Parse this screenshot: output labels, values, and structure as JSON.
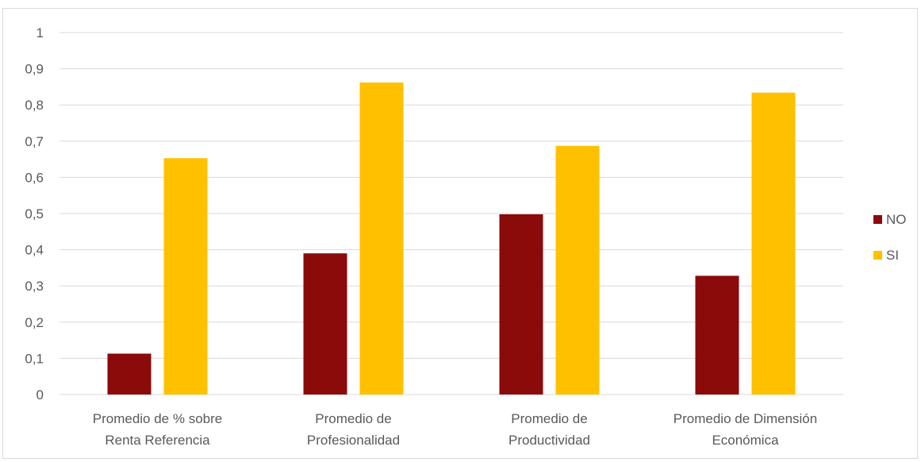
{
  "chart_data": {
    "type": "bar",
    "categories": [
      [
        "Promedio de % sobre",
        "Renta Referencia"
      ],
      [
        "Promedio de",
        "Profesionalidad"
      ],
      [
        "Promedio de",
        "Productividad"
      ],
      [
        "Promedio de Dimensión",
        "Económica"
      ]
    ],
    "series": [
      {
        "name": "NO",
        "color": "#8b0a0a",
        "values": [
          0.113,
          0.39,
          0.498,
          0.328
        ]
      },
      {
        "name": "SI",
        "color": "#ffc000",
        "values": [
          0.653,
          0.862,
          0.687,
          0.834
        ]
      }
    ],
    "ylim": [
      0,
      1
    ],
    "yticks": [
      "0",
      "0,1",
      "0,2",
      "0,3",
      "0,4",
      "0,5",
      "0,6",
      "0,7",
      "0,8",
      "0,9",
      "1"
    ],
    "grid": true,
    "legend_position": "right"
  }
}
